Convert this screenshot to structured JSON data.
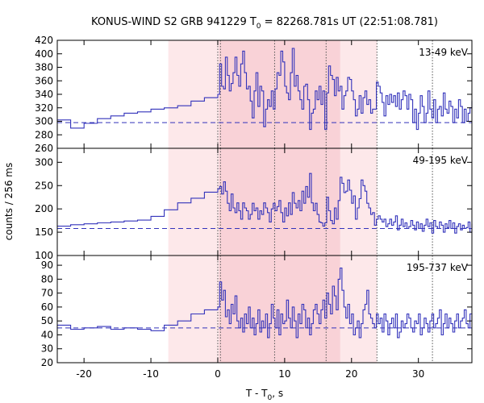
{
  "chart_data": {
    "type": "line",
    "title_main": "KONUS-WIND S2 GRB 941229 T",
    "title_sub": "0",
    "title_rest": " = 82268.781s UT (22:51:08.781)",
    "xlabel_main": "T - T",
    "xlabel_sub": "0",
    "xlabel_rest": ", s",
    "ylabel": "counts / 256 ms",
    "xlim": [
      -24,
      38
    ],
    "xticks": [
      -20,
      -10,
      0,
      10,
      20,
      30
    ],
    "shaded_intervals": [
      {
        "x0": -7.4,
        "x1": 23.8,
        "level": "light"
      },
      {
        "x0": 0.2,
        "x1": 18.3,
        "level": "dark"
      }
    ],
    "vertical_lines": [
      0,
      0.4,
      8.5,
      16.2,
      23.8,
      32.1
    ],
    "colors": {
      "series": "#3333bb",
      "shade_light": "#fde8ea",
      "shade_dark": "#f9d2d7",
      "guide": "#555555"
    },
    "panels": [
      {
        "band": "13-49 keV",
        "ylim": [
          260,
          420
        ],
        "yticks": [
          260,
          280,
          300,
          320,
          340,
          360,
          380,
          400,
          420
        ],
        "background": 298,
        "edges": [
          -24,
          -22,
          -20,
          -18,
          -16,
          -14,
          -12,
          -10,
          -8,
          -6,
          -4,
          -2,
          0
        ],
        "levels": [
          302,
          290,
          297,
          304,
          308,
          312,
          314,
          318,
          320,
          323,
          330,
          335,
          340
        ],
        "dense_values": [
          385,
          352,
          348,
          395,
          368,
          345,
          356,
          372,
          395,
          368,
          352,
          385,
          404,
          372,
          348,
          352,
          330,
          305,
          345,
          372,
          322,
          352,
          345,
          292,
          318,
          332,
          322,
          345,
          318,
          348,
          372,
          368,
          404,
          388,
          352,
          342,
          332,
          372,
          408,
          352,
          368,
          345,
          332,
          318,
          352,
          355,
          332,
          288,
          312,
          318,
          345,
          332,
          352,
          325,
          345,
          288,
          342,
          382,
          368,
          362,
          338,
          365,
          345,
          352,
          318,
          338,
          345,
          365,
          362,
          345,
          332,
          308,
          318,
          338,
          312,
          335,
          345,
          325,
          332,
          312,
          318,
          318,
          358,
          352,
          342,
          328,
          308,
          338,
          325,
          340,
          328,
          338,
          322,
          342,
          318,
          332,
          345,
          338,
          318,
          340,
          332,
          298,
          318,
          288,
          312,
          338,
          322,
          298,
          312,
          345,
          318,
          305,
          332,
          298,
          318,
          322,
          308,
          342,
          318,
          312,
          330,
          322,
          298,
          318,
          305,
          332,
          322,
          298,
          318,
          300,
          312,
          320,
          330
        ]
      },
      {
        "band": "49-195 keV",
        "ylim": [
          100,
          330
        ],
        "yticks": [
          100,
          150,
          200,
          250,
          300
        ],
        "background": 158,
        "edges": [
          -24,
          -22,
          -20,
          -18,
          -16,
          -14,
          -12,
          -10,
          -8,
          -6,
          -4,
          -2,
          0
        ],
        "levels": [
          163,
          166,
          168,
          170,
          172,
          174,
          176,
          184,
          198,
          213,
          223,
          236,
          243
        ],
        "dense_values": [
          248,
          232,
          258,
          238,
          212,
          196,
          232,
          202,
          192,
          213,
          196,
          178,
          213,
          202,
          196,
          178,
          188,
          212,
          196,
          202,
          178,
          196,
          188,
          213,
          202,
          192,
          172,
          200,
          212,
          196,
          205,
          218,
          192,
          172,
          202,
          185,
          213,
          188,
          235,
          212,
          202,
          218,
          196,
          238,
          212,
          248,
          225,
          276,
          213,
          196,
          212,
          188,
          172,
          170,
          163,
          170,
          225,
          196,
          175,
          168,
          202,
          178,
          218,
          268,
          255,
          235,
          238,
          262,
          240,
          212,
          228,
          178,
          202,
          222,
          262,
          250,
          238,
          212,
          202,
          188,
          192,
          165,
          178,
          185,
          178,
          172,
          178,
          162,
          168,
          178,
          165,
          172,
          185,
          155,
          165,
          178,
          162,
          170,
          158,
          162,
          175,
          165,
          155,
          172,
          158,
          168,
          152,
          165,
          178,
          162,
          170,
          148,
          175,
          162,
          158,
          172,
          165,
          150,
          168,
          160,
          175,
          158,
          170,
          148,
          162,
          168,
          155,
          165,
          158,
          160,
          172,
          150,
          168
        ]
      },
      {
        "band": "195-737 keV",
        "ylim": [
          20,
          97
        ],
        "yticks": [
          20,
          30,
          40,
          50,
          60,
          70,
          80,
          90
        ],
        "background": 45,
        "edges": [
          -24,
          -22,
          -20,
          -18,
          -16,
          -14,
          -12,
          -10,
          -8,
          -6,
          -4,
          -2,
          0
        ],
        "levels": [
          47,
          44,
          45,
          46,
          44,
          45,
          44,
          43,
          47,
          50,
          55,
          58,
          60
        ],
        "dense_values": [
          78,
          65,
          72,
          53,
          58,
          48,
          62,
          55,
          68,
          50,
          45,
          52,
          42,
          55,
          48,
          60,
          45,
          52,
          40,
          48,
          58,
          42,
          50,
          45,
          55,
          38,
          48,
          62,
          52,
          45,
          58,
          40,
          55,
          48,
          50,
          65,
          52,
          45,
          60,
          50,
          38,
          55,
          48,
          62,
          58,
          45,
          52,
          40,
          48,
          58,
          62,
          55,
          48,
          58,
          65,
          52,
          70,
          62,
          55,
          75,
          68,
          58,
          80,
          88,
          72,
          60,
          52,
          62,
          48,
          55,
          40,
          45,
          50,
          38,
          48,
          58,
          62,
          72,
          55,
          52,
          48,
          45,
          55,
          48,
          52,
          42,
          55,
          50,
          40,
          48,
          52,
          45,
          55,
          38,
          42,
          50,
          45,
          48,
          55,
          52,
          45,
          42,
          50,
          48,
          55,
          40,
          45,
          52,
          48,
          42,
          50,
          55,
          45,
          48,
          52,
          58,
          40,
          48,
          55,
          45,
          52,
          48,
          42,
          50,
          55,
          45,
          50,
          52,
          58,
          48,
          45,
          55,
          50
        ]
      }
    ]
  }
}
